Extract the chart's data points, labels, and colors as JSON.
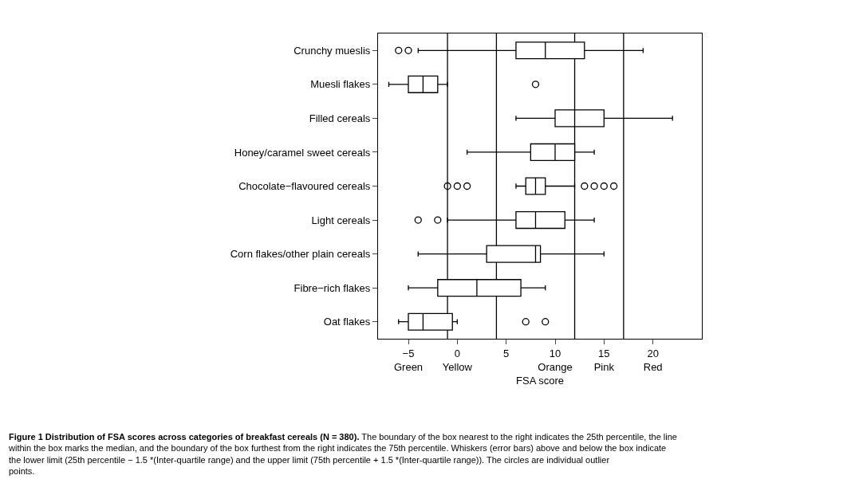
{
  "chart_data": {
    "type": "box",
    "orientation": "horizontal",
    "xlabel": "FSA score",
    "categories": [
      "Crunchy mueslis",
      "Muesli flakes",
      "Filled cereals",
      "Honey/caramel sweet cereals",
      "Chocolate−flavoured cereals",
      "Light cereals",
      "Corn flakes/other plain cereals",
      "Fibre−rich flakes",
      "Oat flakes"
    ],
    "boxes": [
      {
        "low": -4,
        "q1": 6,
        "median": 9,
        "q3": 13,
        "high": 19,
        "outliers": [
          -6,
          -5
        ]
      },
      {
        "low": -7,
        "q1": -5,
        "median": -3.5,
        "q3": -2,
        "high": -1,
        "outliers": [
          8
        ]
      },
      {
        "low": 6,
        "q1": 10,
        "median": 12,
        "q3": 15,
        "high": 22
      },
      {
        "low": 1,
        "q1": 7.5,
        "median": 10,
        "q3": 12,
        "high": 14
      },
      {
        "low": 6,
        "q1": 7,
        "median": 8,
        "q3": 9,
        "high": 12,
        "outliers": [
          -1,
          0,
          1,
          13,
          14,
          15,
          16
        ]
      },
      {
        "low": -1,
        "q1": 6,
        "median": 8,
        "q3": 11,
        "high": 14,
        "outliers": [
          -4,
          -2
        ]
      },
      {
        "low": -4,
        "q1": 3,
        "median": 8,
        "q3": 8.5,
        "high": 15
      },
      {
        "low": -5,
        "q1": -2,
        "median": 2,
        "q3": 6.5,
        "high": 9
      },
      {
        "low": -6,
        "q1": -5,
        "median": -3.5,
        "q3": -0.5,
        "high": 0,
        "outliers": [
          7,
          9
        ]
      }
    ],
    "color": "#000000",
    "xlim": [
      -8.1,
      25
    ],
    "xticks": [
      {
        "value": -5,
        "label": "−5\nGreen"
      },
      {
        "value": 0,
        "label": "0\nYellow"
      },
      5,
      {
        "value": 10,
        "label": "10\nOrange"
      },
      {
        "value": 15,
        "label": "15\nPink"
      },
      {
        "value": 20,
        "label": "20\nRed"
      }
    ],
    "ref_lines": [
      {
        "axis": "x",
        "value": -1,
        "color": "#000000"
      },
      {
        "axis": "x",
        "value": 4,
        "color": "#000000"
      },
      {
        "axis": "x",
        "value": 12,
        "color": "#000000"
      },
      {
        "axis": "x",
        "value": 17,
        "color": "#000000"
      }
    ],
    "grid": false,
    "marker": "circle",
    "annotations": [
      "Figure 1 Distribution of FSA scores across categories of breakfast cereals (N = 380).",
      "The boundary of the box nearest to the right indicates the 25th percentile, the line within the box marks the median, and the boundary of the box furthest from the right indicates the 75th percentile. Whiskers (error bars) above and below the box indicate the lower limit (25th percentile − 1.5 *(Inter-quartile range) and the upper limit (75th percentile + 1.5 *(Inter-quartile range)). The circles are individual outlier points."
    ]
  }
}
